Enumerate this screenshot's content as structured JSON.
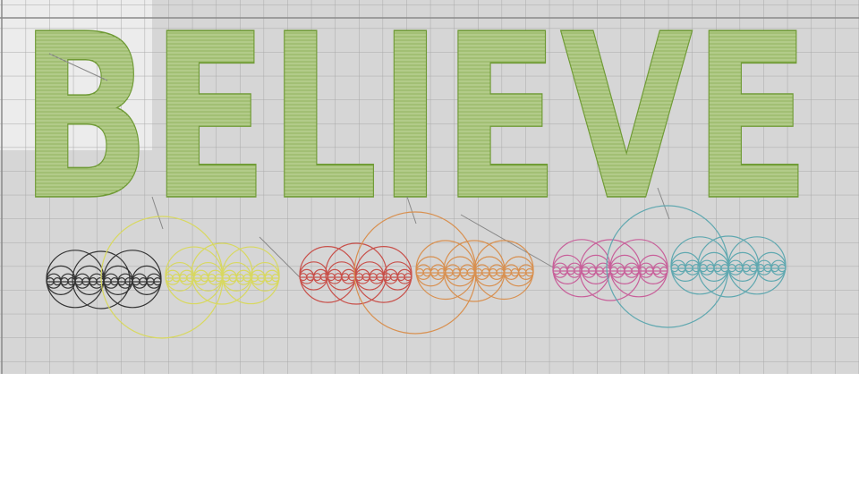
{
  "design": {
    "text": "BELIEVE"
  }
}
